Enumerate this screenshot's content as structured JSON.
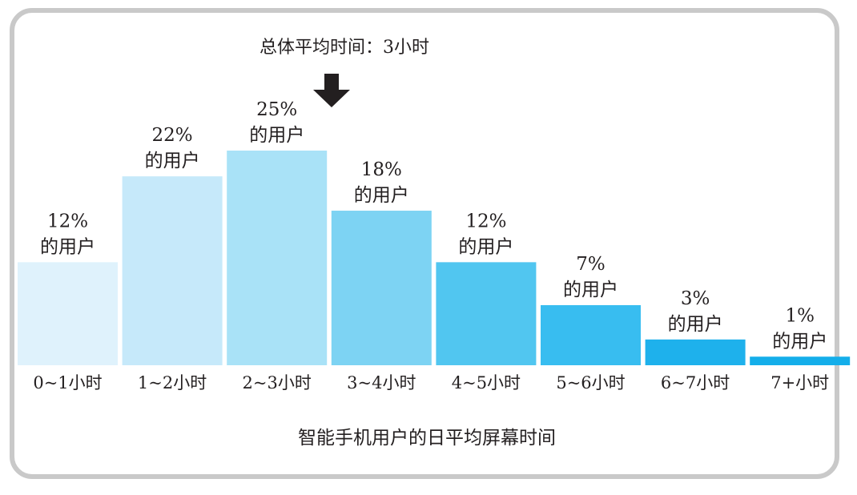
{
  "chart_data": {
    "type": "bar",
    "title": "智能手机用户的日平均屏幕时间",
    "categories": [
      "0~1小时",
      "1~2小时",
      "2~3小时",
      "3~4小时",
      "4~5小时",
      "5~6小时",
      "6~7小时",
      "7+小时"
    ],
    "values": [
      12,
      22,
      25,
      18,
      12,
      7,
      3,
      1
    ],
    "value_labels": [
      "12%",
      "22%",
      "25%",
      "18%",
      "12%",
      "7%",
      "3%",
      "1%"
    ],
    "value_unit_label": "的用户",
    "ylim": [
      0,
      25
    ],
    "grid": false,
    "colors": [
      "#dff2fc",
      "#c6e9fa",
      "#a9e2f7",
      "#7dd3f3",
      "#51c6f0",
      "#38bdf0",
      "#1eb1ec",
      "#14aeea"
    ],
    "annotation": {
      "text": "总体平均时间：3小时",
      "arrow": "down"
    }
  }
}
